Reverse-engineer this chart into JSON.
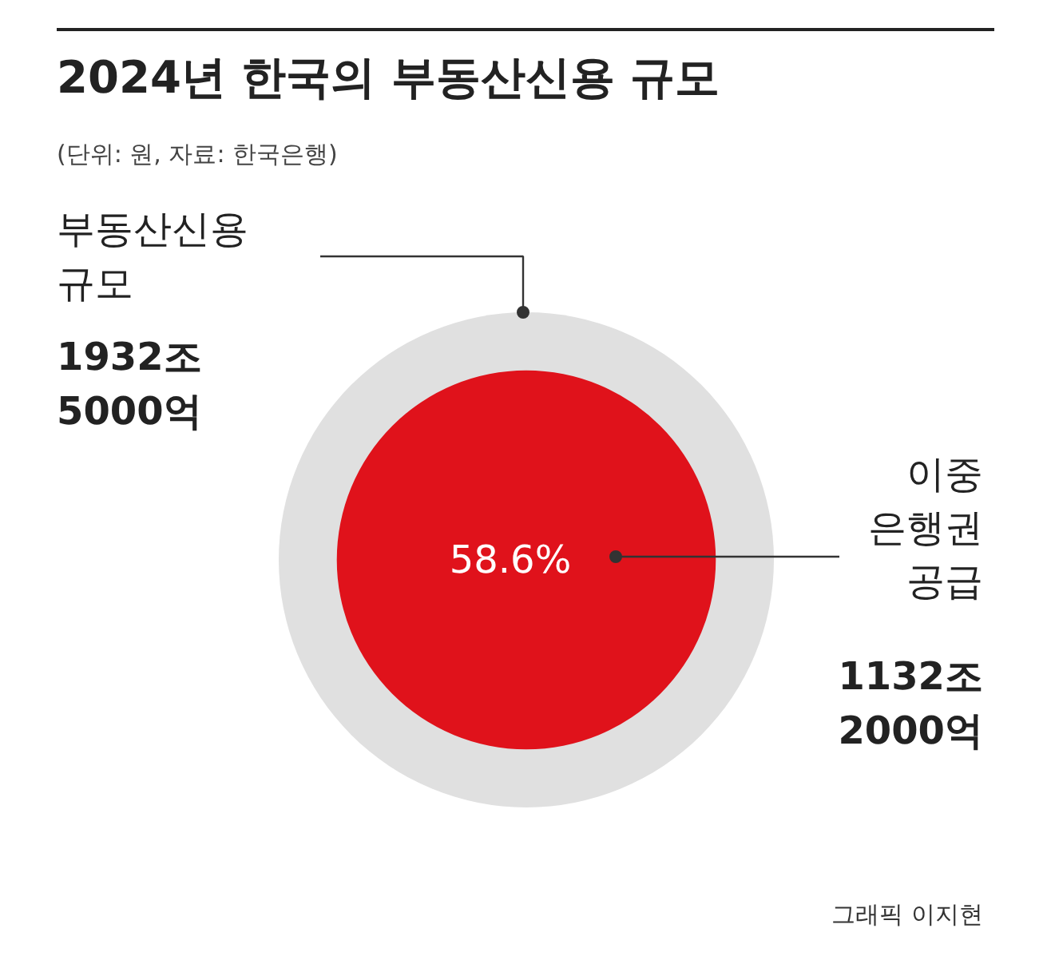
{
  "chart_data": {
    "type": "other",
    "title": "2024년 한국의 부동산신용 규모",
    "subtitle": "(단위: 원, 자료: 한국은행)",
    "categories": [
      "부동산신용 규모",
      "이중 은행권 공급"
    ],
    "values": [
      1932.5,
      1132.2
    ],
    "value_labels": [
      "1932조 5000억",
      "1132조 2000억"
    ],
    "colors": [
      "#e0e0e0",
      "#e0121b"
    ],
    "annotations": [
      "58.6%",
      "그래픽 이지현"
    ]
  }
}
